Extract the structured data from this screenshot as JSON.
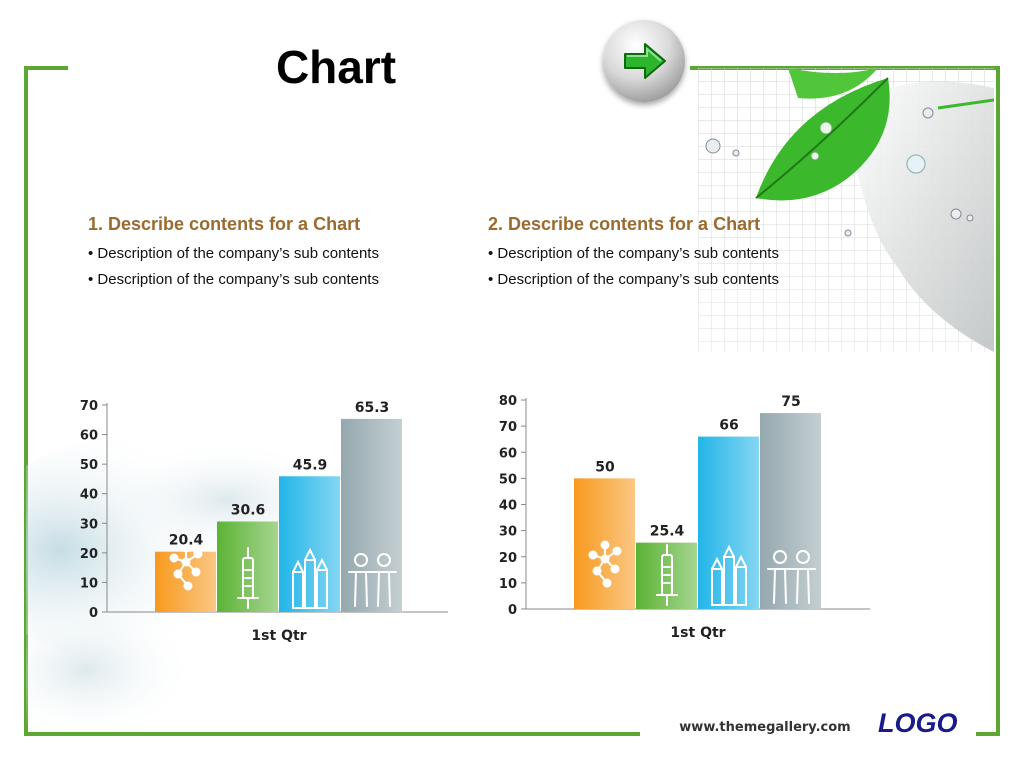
{
  "page": {
    "title": "Chart"
  },
  "nav": {
    "next_icon": "arrow-right-icon",
    "accent": "#2db52d"
  },
  "sections": [
    {
      "heading": "1. Describe contents for a Chart",
      "bullets": [
        "• Description of the company’s sub contents",
        "• Description of the company’s sub contents"
      ]
    },
    {
      "heading": "2. Describe contents for a Chart",
      "bullets": [
        "• Description of the company’s sub contents",
        "• Description of the company’s sub contents"
      ]
    }
  ],
  "footer": {
    "url": "www.themegallery.com",
    "logo": "LOGO"
  },
  "colors": {
    "frame": "#5aa832",
    "heading": "#9b6a2e",
    "logo": "#1a1a8c"
  },
  "chart_data": [
    {
      "type": "bar",
      "categories": [
        "1st Qtr"
      ],
      "series": [
        {
          "values": [
            20.4
          ],
          "color": "#f79a1e",
          "icon": "molecule-icon"
        },
        {
          "values": [
            30.6
          ],
          "color": "#5cb335",
          "icon": "syringe-icon"
        },
        {
          "values": [
            45.9
          ],
          "color": "#22b5e8",
          "icon": "pencils-icon"
        },
        {
          "values": [
            65.3
          ],
          "color": "#94a8ae",
          "icon": "people-icon"
        }
      ],
      "ylim": [
        0,
        70
      ],
      "yticks": [
        0,
        10,
        20,
        30,
        40,
        50,
        60,
        70
      ],
      "xlabel": "",
      "ylabel": "",
      "grid": false
    },
    {
      "type": "bar",
      "categories": [
        "1st Qtr"
      ],
      "series": [
        {
          "values": [
            50
          ],
          "color": "#f79a1e",
          "icon": "molecule-icon"
        },
        {
          "values": [
            25.4
          ],
          "color": "#5cb335",
          "icon": "syringe-icon"
        },
        {
          "values": [
            66
          ],
          "color": "#22b5e8",
          "icon": "pencils-icon"
        },
        {
          "values": [
            75
          ],
          "color": "#94a8ae",
          "icon": "people-icon"
        }
      ],
      "ylim": [
        0,
        80
      ],
      "yticks": [
        0,
        10,
        20,
        30,
        40,
        50,
        60,
        70,
        80
      ],
      "xlabel": "",
      "ylabel": "",
      "grid": false
    }
  ]
}
